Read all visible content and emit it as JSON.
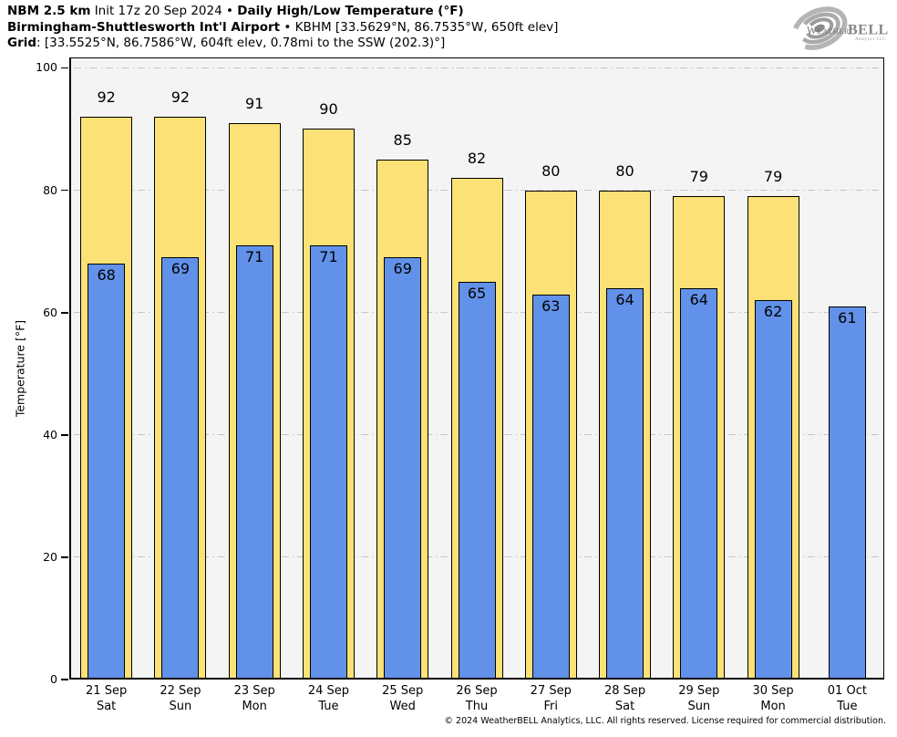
{
  "header": {
    "model_bold": "NBM 2.5 km",
    "init_text": "Init 17z 20 Sep 2024",
    "bullet1": "•",
    "product_bold": "Daily High/Low Temperature (°F)",
    "station_bold": "Birmingham-Shuttlesworth Int'l Airport",
    "bullet2": "•",
    "station_info": "KBHM [33.5629°N, 86.7535°W, 650ft elev]",
    "grid_bold": "Grid",
    "grid_info": ": [33.5525°N, 86.7586°W, 604ft elev, 0.78mi to the SSW (202.3)°]"
  },
  "logo": {
    "brand_part1": "Weather",
    "brand_part2": "BELL",
    "subtext": "Analytics LLC"
  },
  "footer": {
    "copyright": "© 2024 WeatherBELL Analytics, LLC. All rights reserved. License required for commercial distribution."
  },
  "chart_data": {
    "type": "bar",
    "title": "NBM 2.5 km Init 17z 20 Sep 2024 • Daily High/Low Temperature (°F)",
    "subtitle": "Birmingham-Shuttlesworth Int'l Airport • KBHM [33.5629°N, 86.7535°W, 650ft elev]",
    "grid_note": "Grid: [33.5525°N, 86.7586°W, 604ft elev, 0.78mi to the SSW (202.3)°]",
    "xlabel": "",
    "ylabel": "Temperature [°F]",
    "ylim": [
      0,
      101.7
    ],
    "yticks": [
      0,
      20,
      40,
      60,
      80,
      100
    ],
    "grid": true,
    "legend": null,
    "categories": [
      {
        "date": "21 Sep",
        "day": "Sat"
      },
      {
        "date": "22 Sep",
        "day": "Sun"
      },
      {
        "date": "23 Sep",
        "day": "Mon"
      },
      {
        "date": "24 Sep",
        "day": "Tue"
      },
      {
        "date": "25 Sep",
        "day": "Wed"
      },
      {
        "date": "26 Sep",
        "day": "Thu"
      },
      {
        "date": "27 Sep",
        "day": "Fri"
      },
      {
        "date": "28 Sep",
        "day": "Sat"
      },
      {
        "date": "29 Sep",
        "day": "Sun"
      },
      {
        "date": "30 Sep",
        "day": "Mon"
      },
      {
        "date": "01 Oct",
        "day": "Tue"
      }
    ],
    "series": [
      {
        "name": "High",
        "color": "#FCE276",
        "values": [
          92,
          92,
          91,
          90,
          85,
          82,
          80,
          80,
          79,
          79,
          null
        ]
      },
      {
        "name": "Low",
        "color": "#6291E9",
        "values": [
          68,
          69,
          71,
          71,
          69,
          65,
          63,
          64,
          64,
          62,
          61
        ]
      }
    ],
    "colors": {
      "plot_background": "#F4F4F4",
      "gridline": "#C6C6C6",
      "bar_border": "#000000",
      "text": "#000000"
    }
  }
}
